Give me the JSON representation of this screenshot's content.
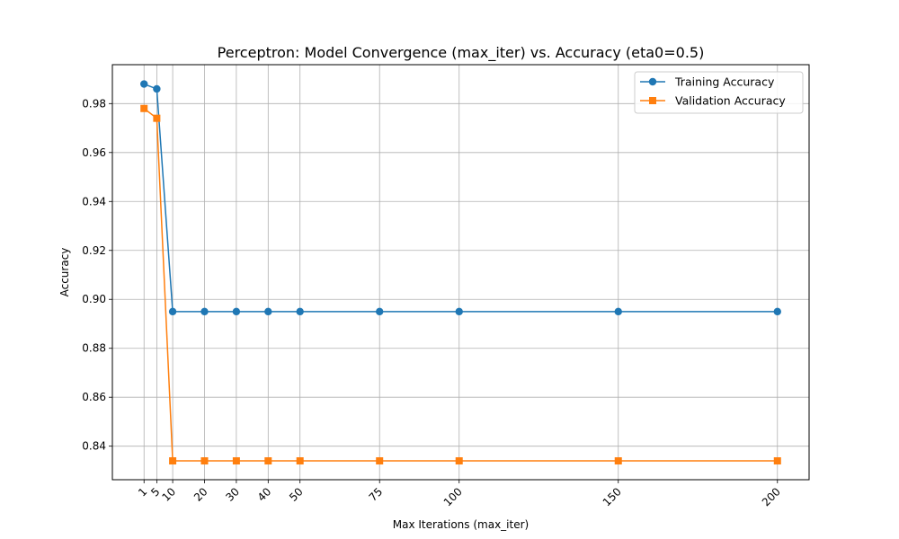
{
  "chart_data": {
    "type": "line",
    "title": "Perceptron: Model Convergence (max_iter) vs. Accuracy (eta0=0.5)",
    "xlabel": "Max Iterations (max_iter)",
    "ylabel": "Accuracy",
    "x": [
      1,
      5,
      10,
      20,
      30,
      40,
      50,
      75,
      100,
      150,
      200
    ],
    "xticks": [
      1,
      5,
      10,
      20,
      30,
      40,
      50,
      75,
      100,
      150,
      200
    ],
    "yticks": [
      0.84,
      0.86,
      0.88,
      0.9,
      0.92,
      0.94,
      0.96,
      0.98
    ],
    "xlim": [
      -8.95,
      209.95
    ],
    "ylim": [
      0.8263,
      0.9959
    ],
    "grid": true,
    "legend_position": "top-right",
    "series": [
      {
        "name": "Training Accuracy",
        "color": "#1f77b4",
        "marker": "circle",
        "values": [
          0.988,
          0.986,
          0.895,
          0.895,
          0.895,
          0.895,
          0.895,
          0.895,
          0.895,
          0.895,
          0.895
        ]
      },
      {
        "name": "Validation Accuracy",
        "color": "#ff7f0e",
        "marker": "square",
        "values": [
          0.978,
          0.974,
          0.834,
          0.834,
          0.834,
          0.834,
          0.834,
          0.834,
          0.834,
          0.834,
          0.834
        ]
      }
    ]
  }
}
